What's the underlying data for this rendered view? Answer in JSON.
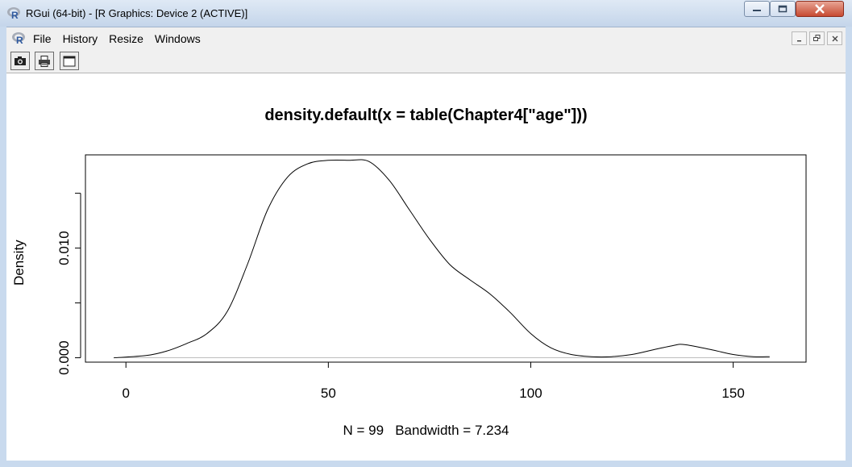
{
  "window": {
    "title": "RGui (64-bit) - [R Graphics: Device 2 (ACTIVE)]",
    "app_icon": "r-logo-icon"
  },
  "menu": {
    "items": [
      "File",
      "History",
      "Resize",
      "Windows"
    ]
  },
  "toolbar": {
    "buttons": [
      "copy-camera-icon",
      "print-icon",
      "console-window-icon"
    ]
  },
  "plot": {
    "title": "density.default(x = table(Chapter4[\"age\"]))",
    "ylabel": "Density",
    "sub": "N = 99   Bandwidth = 7.234"
  },
  "chart_data": {
    "type": "line",
    "title": "density.default(x = table(Chapter4[\"age\"]))",
    "xlabel": "N = 99   Bandwidth = 7.234",
    "ylabel": "Density",
    "xlim": [
      -10,
      168
    ],
    "ylim": [
      -0.0004,
      0.0185
    ],
    "x_ticks": [
      0,
      50,
      100,
      150
    ],
    "y_ticks": [
      0.0,
      0.005,
      0.01,
      0.015
    ],
    "y_tick_labels": [
      "0.000",
      "",
      "0.010",
      ""
    ],
    "baseline": 0,
    "series": [
      {
        "x": [
          -3,
          5,
          10,
          15,
          20,
          25,
          30,
          35,
          40,
          45,
          50,
          55,
          60,
          65,
          70,
          75,
          80,
          85,
          90,
          95,
          100,
          105,
          110,
          115,
          120,
          125,
          130,
          135,
          138,
          145,
          150,
          155,
          159
        ],
        "y": [
          0.0,
          0.0002,
          0.0006,
          0.0013,
          0.0022,
          0.0042,
          0.0085,
          0.0135,
          0.0165,
          0.0177,
          0.018,
          0.018,
          0.0179,
          0.0162,
          0.0135,
          0.0108,
          0.0085,
          0.0071,
          0.0058,
          0.0041,
          0.0022,
          0.0009,
          0.0003,
          0.0001,
          0.0001,
          0.0003,
          0.0007,
          0.0011,
          0.0012,
          0.0007,
          0.0003,
          0.0001,
          0.0001
        ]
      }
    ]
  }
}
